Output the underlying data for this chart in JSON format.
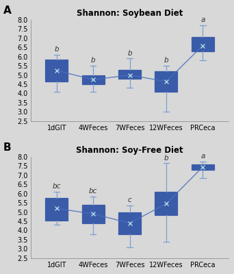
{
  "title_A": "Shannon: Soybean Diet",
  "title_B": "Shannon: Soy-Free Diet",
  "label_A": "A",
  "label_B": "B",
  "categories": [
    "1dGIT",
    "4WFeces",
    "7WFeces",
    "12WFeces",
    "PRCeca"
  ],
  "ylim": [
    2.5,
    8.0
  ],
  "yticks": [
    2.5,
    3.0,
    3.5,
    4.0,
    4.5,
    5.0,
    5.5,
    6.0,
    6.5,
    7.0,
    7.5,
    8.0
  ],
  "box_facecolor": "#5B7EC9",
  "box_edgecolor": "#3A5BA8",
  "whisker_color": "#7A9FD4",
  "median_color": "#3A5BA8",
  "mean_line_color": "#4A6FC0",
  "bg_color": "#D8D8D8",
  "sig_letters_A": [
    "b",
    "b",
    "b",
    "b",
    "a"
  ],
  "sig_letters_B": [
    "bc",
    "bc",
    "c",
    "b",
    "a"
  ],
  "boxes_A": {
    "1dGIT": {
      "q1": 4.65,
      "median": 5.15,
      "q3": 5.85,
      "whislo": 4.1,
      "whishi": 6.1,
      "mean": 5.25
    },
    "4WFeces": {
      "q1": 4.5,
      "median": 4.7,
      "q3": 5.0,
      "whislo": 4.1,
      "whishi": 5.5,
      "mean": 4.75
    },
    "7WFeces": {
      "q1": 4.8,
      "median": 5.0,
      "q3": 5.3,
      "whislo": 4.3,
      "whishi": 5.9,
      "mean": 5.0
    },
    "12WFeces": {
      "q1": 4.1,
      "median": 4.65,
      "q3": 5.2,
      "whislo": 3.0,
      "whishi": 5.5,
      "mean": 4.65
    },
    "PRCeca": {
      "q1": 6.3,
      "median": 6.65,
      "q3": 7.05,
      "whislo": 5.8,
      "whishi": 7.7,
      "mean": 6.6
    }
  },
  "boxes_B": {
    "1dGIT": {
      "q1": 4.55,
      "median": 5.2,
      "q3": 5.75,
      "whislo": 4.3,
      "whishi": 6.1,
      "mean": 5.2
    },
    "4WFeces": {
      "q1": 4.4,
      "median": 5.0,
      "q3": 5.4,
      "whislo": 3.8,
      "whishi": 5.85,
      "mean": 4.9
    },
    "7WFeces": {
      "q1": 3.8,
      "median": 4.55,
      "q3": 5.0,
      "whislo": 3.1,
      "whishi": 5.35,
      "mean": 4.4
    },
    "12WFeces": {
      "q1": 4.85,
      "median": 5.5,
      "q3": 6.1,
      "whislo": 3.4,
      "whishi": 7.65,
      "mean": 5.45
    },
    "PRCeca": {
      "q1": 7.3,
      "median": 7.5,
      "q3": 7.6,
      "whislo": 6.85,
      "whishi": 7.75,
      "mean": 7.45
    }
  },
  "sig_letter_color": "#333333",
  "sig_letter_fontsize": 7.5,
  "title_fontsize": 8.5,
  "tick_fontsize": 7.0,
  "xtick_fontsize": 7.5
}
